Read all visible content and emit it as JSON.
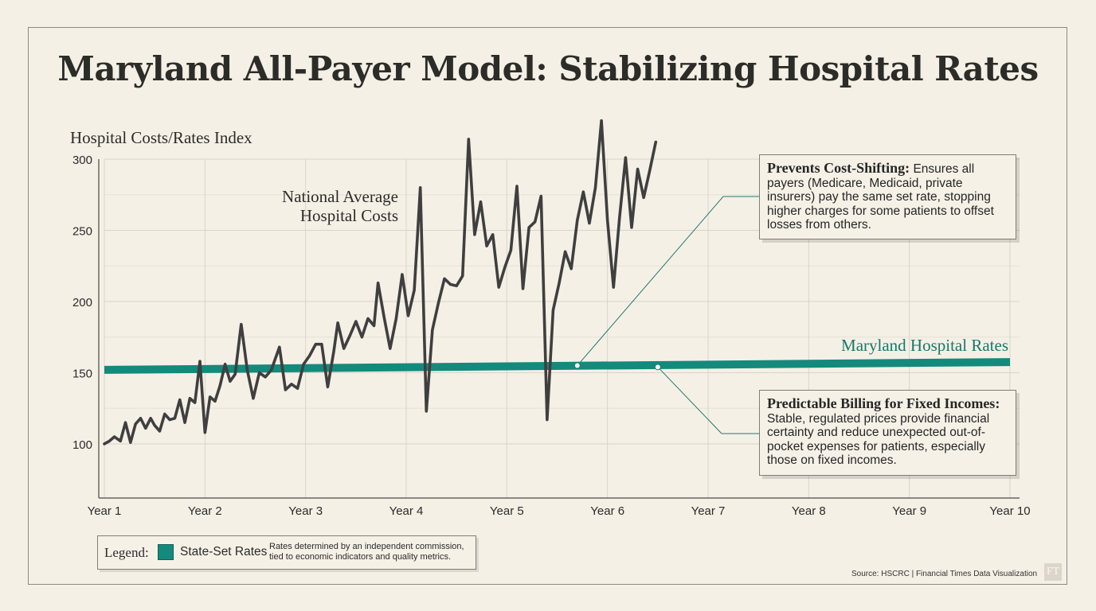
{
  "title": "Maryland All-Payer Model: Stabilizing Hospital Rates",
  "colors": {
    "background": "#f5f0e6",
    "national_line": "#3f3f3f",
    "maryland_line": "#138a7c",
    "maryland_label": "#16786b",
    "grid": "#d9d4ca"
  },
  "chart_data": {
    "type": "line",
    "ylabel": "Hospital Costs/Rates Index",
    "xlabel": "",
    "ylim": [
      62,
      300
    ],
    "xlim": [
      1,
      10
    ],
    "yticks": [
      100,
      150,
      200,
      250,
      300
    ],
    "xtick_labels": [
      "Year 1",
      "Year 2",
      "Year 3",
      "Year 4",
      "Year 5",
      "Year 6",
      "Year 7",
      "Year 8",
      "Year 9",
      "Year 10"
    ],
    "grid": true,
    "series": [
      {
        "name": "National Average Hospital Costs",
        "label_lines": [
          "National Average",
          "Hospital Costs"
        ],
        "points": [
          [
            1.0,
            100
          ],
          [
            1.05,
            102
          ],
          [
            1.1,
            105
          ],
          [
            1.16,
            102
          ],
          [
            1.21,
            115
          ],
          [
            1.26,
            101
          ],
          [
            1.31,
            114
          ],
          [
            1.36,
            118
          ],
          [
            1.41,
            111
          ],
          [
            1.46,
            118
          ],
          [
            1.5,
            113
          ],
          [
            1.55,
            109
          ],
          [
            1.6,
            121
          ],
          [
            1.65,
            117
          ],
          [
            1.7,
            118
          ],
          [
            1.75,
            131
          ],
          [
            1.8,
            115
          ],
          [
            1.85,
            132
          ],
          [
            1.9,
            129
          ],
          [
            1.95,
            158
          ],
          [
            2.0,
            108
          ],
          [
            2.05,
            133
          ],
          [
            2.1,
            130
          ],
          [
            2.15,
            141
          ],
          [
            2.2,
            156
          ],
          [
            2.25,
            144
          ],
          [
            2.3,
            149
          ],
          [
            2.36,
            184
          ],
          [
            2.42,
            152
          ],
          [
            2.48,
            132
          ],
          [
            2.54,
            150
          ],
          [
            2.6,
            147
          ],
          [
            2.66,
            152
          ],
          [
            2.74,
            168
          ],
          [
            2.8,
            138
          ],
          [
            2.86,
            142
          ],
          [
            2.92,
            139
          ],
          [
            2.98,
            156
          ],
          [
            3.04,
            162
          ],
          [
            3.1,
            170
          ],
          [
            3.16,
            170
          ],
          [
            3.22,
            140
          ],
          [
            3.28,
            165
          ],
          [
            3.32,
            185
          ],
          [
            3.38,
            167
          ],
          [
            3.44,
            176
          ],
          [
            3.5,
            186
          ],
          [
            3.56,
            175
          ],
          [
            3.62,
            188
          ],
          [
            3.68,
            183
          ],
          [
            3.72,
            213
          ],
          [
            3.78,
            189
          ],
          [
            3.84,
            167
          ],
          [
            3.9,
            188
          ],
          [
            3.96,
            219
          ],
          [
            4.02,
            190
          ],
          [
            4.08,
            208
          ],
          [
            4.14,
            280
          ],
          [
            4.2,
            123
          ],
          [
            4.26,
            180
          ],
          [
            4.32,
            199
          ],
          [
            4.38,
            216
          ],
          [
            4.44,
            212
          ],
          [
            4.5,
            211
          ],
          [
            4.56,
            218
          ],
          [
            4.62,
            314
          ],
          [
            4.68,
            247
          ],
          [
            4.74,
            270
          ],
          [
            4.8,
            239
          ],
          [
            4.86,
            247
          ],
          [
            4.92,
            210
          ],
          [
            4.98,
            224
          ],
          [
            5.04,
            236
          ],
          [
            5.1,
            281
          ],
          [
            5.16,
            209
          ],
          [
            5.22,
            252
          ],
          [
            5.28,
            256
          ],
          [
            5.34,
            274
          ],
          [
            5.4,
            117
          ],
          [
            5.46,
            194
          ],
          [
            5.52,
            213
          ],
          [
            5.58,
            235
          ],
          [
            5.64,
            223
          ],
          [
            5.7,
            257
          ],
          [
            5.76,
            277
          ],
          [
            5.82,
            255
          ],
          [
            5.88,
            280
          ],
          [
            5.94,
            327
          ],
          [
            6.0,
            257
          ],
          [
            6.06,
            210
          ],
          [
            6.12,
            259
          ],
          [
            6.18,
            301
          ],
          [
            6.24,
            252
          ],
          [
            6.3,
            293
          ],
          [
            6.36,
            273
          ],
          [
            6.42,
            292
          ],
          [
            6.48,
            312
          ]
        ]
      },
      {
        "name": "Maryland Hospital Rates",
        "points": [
          [
            1,
            152
          ],
          [
            10,
            157.5
          ]
        ]
      }
    ],
    "annotations": [
      {
        "title": "Prevents Cost-Shifting:",
        "body": " Ensures all payers (Medicare, Medicaid, private insurers) pay the same set rate, stopping higher charges for some patients to offset losses from others.",
        "anchor": [
          5.7,
          155
        ]
      },
      {
        "title": "Predictable Billing for Fixed Incomes:",
        "body": " Stable, regulated prices provide financial certainty and reduce unexpected out-of-pocket expenses for patients, especially those on fixed incomes.",
        "anchor": [
          6.5,
          154
        ]
      }
    ]
  },
  "legend": {
    "title": "Legend:",
    "item": "State-Set Rates",
    "description": "Rates determined by an independent commission, tied to economic indicators and quality metrics."
  },
  "source": "Source: HSCRC | Financial Times Data Visualization",
  "logo_text": "FT"
}
